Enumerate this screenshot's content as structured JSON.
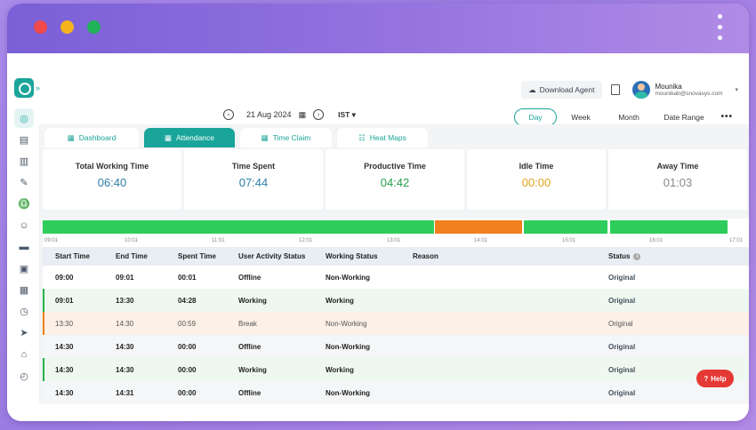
{
  "window": {
    "accent": "#1aa59a"
  },
  "header": {
    "download_label": "Download Agent",
    "user_name": "Mounika",
    "user_email": "mounikab@snovasys.com"
  },
  "datebar": {
    "date": "21 Aug 2024",
    "timezone": "IST"
  },
  "periods": [
    "Day",
    "Week",
    "Month",
    "Date Range"
  ],
  "tabs": [
    {
      "label": "Dashboard",
      "icon": "grid-icon"
    },
    {
      "label": "Attendance",
      "icon": "calendar-icon"
    },
    {
      "label": "Time Claim",
      "icon": "calendar-icon"
    },
    {
      "label": "Heat Maps",
      "icon": "heatmap-icon"
    }
  ],
  "cards": [
    {
      "label": "Total Working Time",
      "value": "06:40",
      "color": "#2f7fa8"
    },
    {
      "label": "Time Spent",
      "value": "07:44",
      "color": "#2f7fa8"
    },
    {
      "label": "Productive Time",
      "value": "04:42",
      "color": "#27a04a"
    },
    {
      "label": "Idle Time",
      "value": "00:00",
      "color": "#e0a31a"
    },
    {
      "label": "Away Time",
      "value": "01:03",
      "color": "#888888"
    }
  ],
  "timeline": {
    "ticks": [
      "09:01",
      "10:01",
      "11:01",
      "12:01",
      "13:01",
      "14:01",
      "15:01",
      "16:01",
      "17:01"
    ],
    "colors": {
      "working": "#2ecc5b",
      "break": "#f07f1e"
    }
  },
  "table": {
    "headers": [
      "Start Time",
      "End Time",
      "Spent Time",
      "User Activity Status",
      "Working Status",
      "Reason",
      "Status"
    ],
    "rows": [
      {
        "start": "09:00",
        "end": "09:01",
        "spent": "00:01",
        "activity": "Offline",
        "working": "Non-Working",
        "reason": "",
        "status": "Original"
      },
      {
        "start": "09:01",
        "end": "13:30",
        "spent": "04:28",
        "activity": "Working",
        "working": "Working",
        "reason": "",
        "status": "Original"
      },
      {
        "start": "13:30",
        "end": "14:30",
        "spent": "00:59",
        "activity": "Break",
        "working": "Non-Working",
        "reason": "",
        "status": "Original"
      },
      {
        "start": "14:30",
        "end": "14:30",
        "spent": "00:00",
        "activity": "Offline",
        "working": "Non-Working",
        "reason": "",
        "status": "Original"
      },
      {
        "start": "14:30",
        "end": "14:30",
        "spent": "00:00",
        "activity": "Working",
        "working": "Working",
        "reason": "",
        "status": "Original"
      },
      {
        "start": "14:30",
        "end": "14:31",
        "spent": "00:00",
        "activity": "Offline",
        "working": "Non-Working",
        "reason": "",
        "status": "Original"
      }
    ]
  },
  "help_label": "Help",
  "sidebar_icons": [
    "target-icon",
    "report-icon",
    "ticket-icon",
    "idea-icon",
    "alarm-icon",
    "user-icon",
    "card-icon",
    "briefcase-icon",
    "calendar-icon",
    "clock-icon",
    "send-icon",
    "graduation-icon",
    "watch-icon"
  ]
}
